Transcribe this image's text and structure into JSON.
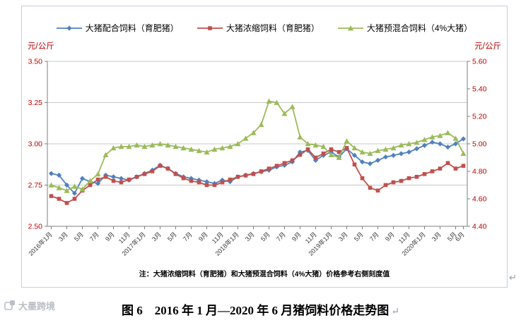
{
  "figure": {
    "caption": "图 6　2016 年 1 月—2020 年 6 月猪饲料价格走势图",
    "caption_return_mark": "↵",
    "after_chart_return_mark": "↵",
    "watermark": "大墨跨境"
  },
  "chart_data": {
    "type": "line",
    "title": "图 6 2016年1月—2020年6月猪饲料价格走势图",
    "legend_position": "top",
    "grid": true,
    "gridline_color": "#c9c9c9",
    "axis_line_color": "#7f7f7f",
    "n_points": 54,
    "left_axis": {
      "unit": "元/公斤",
      "min": 2.5,
      "max": 3.5,
      "tick_labels": [
        "2.50",
        "2.75",
        "3.00",
        "3.25",
        "3.50"
      ],
      "label_color": "#c00000"
    },
    "right_axis": {
      "unit": "元/公斤",
      "min": 4.4,
      "max": 5.6,
      "tick_labels": [
        "4.40",
        "4.60",
        "4.80",
        "5.00",
        "5.20",
        "5.40",
        "5.60"
      ],
      "label_color": "#c00000"
    },
    "x_tick_indices": [
      0,
      2,
      4,
      6,
      8,
      10,
      12,
      14,
      16,
      18,
      20,
      22,
      24,
      26,
      28,
      30,
      32,
      34,
      36,
      38,
      40,
      42,
      44,
      46,
      48,
      50,
      52,
      53
    ],
    "x_tick_labels": [
      "2016年1月",
      "3月",
      "5月",
      "7月",
      "9月",
      "11月",
      "2017年1月",
      "3月",
      "5月",
      "7月",
      "9月",
      "11月",
      "2018年1月",
      "3月",
      "5月",
      "7月",
      "9月",
      "11月",
      "2019年1月",
      "3月",
      "5月",
      "7月",
      "9月",
      "11月",
      "2020年1月",
      "3月",
      "5月",
      "6月"
    ],
    "note": "注：大猪浓缩饲料（育肥猪）和大猪预混合饲料（4%大猪）价格参考右侧刻度值",
    "series": [
      {
        "name": "大猪配合饲料（育肥猪）",
        "axis": "left",
        "color": "#4f81bd",
        "marker": "diamond",
        "values": [
          2.82,
          2.81,
          2.75,
          2.7,
          2.79,
          2.77,
          2.76,
          2.81,
          2.8,
          2.79,
          2.78,
          2.8,
          2.82,
          2.84,
          2.87,
          2.85,
          2.82,
          2.8,
          2.79,
          2.78,
          2.77,
          2.76,
          2.78,
          2.77,
          2.8,
          2.81,
          2.82,
          2.83,
          2.84,
          2.86,
          2.87,
          2.89,
          2.95,
          2.96,
          2.9,
          2.93,
          2.95,
          2.92,
          2.97,
          2.93,
          2.89,
          2.88,
          2.9,
          2.92,
          2.93,
          2.94,
          2.95,
          2.97,
          2.99,
          3.01,
          3.0,
          2.98,
          3.0,
          3.03
        ]
      },
      {
        "name": "大猪浓缩饲料（育肥猪）",
        "axis": "right",
        "color": "#c0504d",
        "marker": "square",
        "values": [
          4.62,
          4.6,
          4.57,
          4.6,
          4.66,
          4.7,
          4.74,
          4.76,
          4.73,
          4.72,
          4.74,
          4.76,
          4.78,
          4.8,
          4.84,
          4.82,
          4.78,
          4.75,
          4.73,
          4.72,
          4.7,
          4.7,
          4.72,
          4.74,
          4.76,
          4.77,
          4.78,
          4.8,
          4.82,
          4.84,
          4.86,
          4.88,
          4.92,
          4.96,
          4.9,
          4.93,
          4.96,
          4.94,
          4.97,
          4.85,
          4.75,
          4.68,
          4.66,
          4.7,
          4.72,
          4.73,
          4.75,
          4.76,
          4.78,
          4.8,
          4.82,
          4.86,
          4.82,
          4.84
        ]
      },
      {
        "name": "大猪预混合饲料（4%大猪）",
        "axis": "right",
        "color": "#9bbb59",
        "marker": "triangle",
        "values": [
          4.7,
          4.68,
          4.66,
          4.69,
          4.67,
          4.73,
          4.78,
          4.92,
          4.97,
          4.98,
          4.98,
          4.99,
          4.98,
          4.99,
          5.0,
          4.99,
          4.98,
          4.97,
          4.96,
          4.95,
          4.94,
          4.96,
          4.97,
          4.98,
          5.0,
          5.04,
          5.08,
          5.14,
          5.31,
          5.3,
          5.22,
          5.27,
          5.05,
          5.0,
          4.99,
          4.98,
          4.92,
          4.9,
          5.02,
          4.97,
          4.94,
          4.93,
          4.95,
          4.96,
          4.97,
          4.99,
          5.0,
          5.01,
          5.03,
          5.05,
          5.06,
          5.08,
          5.04,
          4.93
        ]
      }
    ]
  }
}
